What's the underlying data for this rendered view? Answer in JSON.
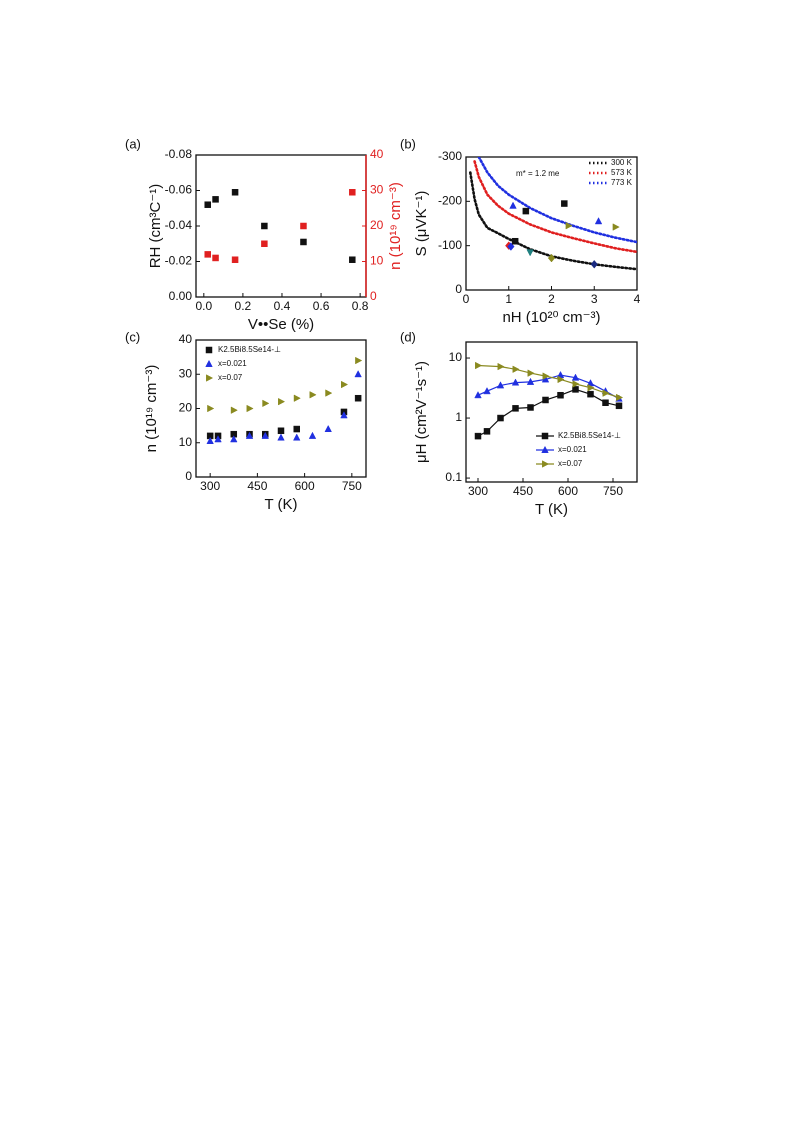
{
  "chart_data": [
    {
      "type": "scatter",
      "panel_label": "(a)",
      "xlabel": "V••Se (%)",
      "ylabel": "RH (cm³C⁻¹)",
      "y2label": "n (10¹⁹ cm⁻³)",
      "y2color": "#e02020",
      "xlim": [
        -0.04,
        0.83
      ],
      "xticks": [
        {
          "value": 0,
          "label": "0.0"
        },
        0.2,
        0.4,
        0.6,
        0.8
      ],
      "ylim": [
        0,
        -0.08
      ],
      "yticks": [
        -0.08,
        -0.06,
        -0.04,
        -0.02,
        {
          "value": 0,
          "label": "0.00"
        }
      ],
      "y2lim": [
        0,
        40
      ],
      "y2ticks": [
        0,
        10,
        20,
        30,
        40
      ],
      "series": [
        {
          "color": "#111111",
          "marker": "square",
          "x": [
            0.02,
            0.06,
            0.16,
            0.31,
            0.51,
            0.76
          ],
          "values": [
            -0.052,
            -0.055,
            -0.059,
            -0.04,
            -0.031,
            -0.021
          ]
        },
        {
          "color": "#e02020",
          "marker": "square",
          "axis": "y2",
          "x": [
            0.02,
            0.06,
            0.16,
            0.31,
            0.51,
            0.76
          ],
          "values": [
            12,
            11,
            10.5,
            15,
            20,
            29.5
          ]
        }
      ]
    },
    {
      "type": "line",
      "panel_label": "(b)",
      "xlabel": "nH (10²⁰ cm⁻³)",
      "ylabel": "S (μVK⁻¹)",
      "annotation": "m* = 1.2 me",
      "xlim": [
        0,
        4
      ],
      "xticks": [
        0,
        1,
        2,
        3,
        4
      ],
      "ylim": [
        0,
        -300
      ],
      "yticks": [
        -300,
        -200,
        -100,
        0
      ],
      "legend": "upper right",
      "linestyle": "dotted",
      "series": [
        {
          "name": "300 K",
          "color": "#111111",
          "x": [
            0.1,
            0.2,
            0.3,
            0.5,
            0.75,
            1,
            1.5,
            2,
            2.5,
            3,
            3.5,
            4
          ],
          "values": [
            -265,
            -205,
            -170,
            -140,
            -128,
            -115,
            -92,
            -76,
            -66,
            -58,
            -52,
            -47
          ]
        },
        {
          "name": "573 K",
          "color": "#e02020",
          "x": [
            0.1,
            0.2,
            0.3,
            0.5,
            0.75,
            1,
            1.5,
            2,
            2.5,
            3,
            3.5,
            4
          ],
          "values": [
            null,
            -290,
            -255,
            -215,
            -190,
            -172,
            -148,
            -130,
            -117,
            -105,
            -94,
            -86
          ]
        },
        {
          "name": "773 K",
          "color": "#2030e0",
          "x": [
            0.1,
            0.2,
            0.3,
            0.5,
            0.75,
            1,
            1.5,
            2,
            2.5,
            3,
            3.5,
            4
          ],
          "values": [
            null,
            null,
            -300,
            -265,
            -235,
            -215,
            -185,
            -162,
            -145,
            -130,
            -118,
            -108
          ]
        }
      ],
      "points": {
        "x": [
          1.0,
          1.05,
          1.15,
          1.5,
          2.0,
          3.0,
          1.4,
          2.3,
          1.1,
          3.1,
          2.4,
          3.5
        ],
        "values": [
          -100,
          -98,
          -110,
          -85,
          -72,
          -58,
          -178,
          -195,
          -190,
          -155,
          -145,
          -142
        ],
        "colors": [
          "#e02020",
          "#2030e0",
          "#111111",
          "#208080",
          "#8a8a20",
          "#1a2a80",
          "#111111",
          "#111111",
          "#2030e0",
          "#2030e0",
          "#8a8a20",
          "#8a8a20"
        ],
        "markers": [
          "diamond",
          "diamond",
          "square",
          "triangle-down",
          "diamond",
          "diamond",
          "square",
          "square",
          "triangle",
          "triangle",
          "triangle-right",
          "triangle-right"
        ]
      }
    },
    {
      "type": "scatter",
      "panel_label": "(c)",
      "xlabel": "T (K)",
      "ylabel": "n (10¹⁹ cm⁻³)",
      "xlim": [
        255,
        795
      ],
      "xticks": [
        300,
        450,
        600,
        750
      ],
      "ylim": [
        0,
        40
      ],
      "yticks": [
        0,
        10,
        20,
        30,
        40
      ],
      "legend": "upper left",
      "series": [
        {
          "name": "K2.5Bi8.5Se14-⊥",
          "color": "#111111",
          "marker": "square",
          "x": [
            300,
            325,
            375,
            425,
            475,
            525,
            575,
            725,
            770
          ],
          "values": [
            12,
            12,
            12.5,
            12.5,
            12.5,
            13.5,
            14,
            19,
            23
          ]
        },
        {
          "name": "x=0.021",
          "color": "#2030e0",
          "marker": "triangle",
          "x": [
            300,
            325,
            375,
            425,
            475,
            525,
            575,
            625,
            675,
            725,
            770
          ],
          "values": [
            10.5,
            11,
            11,
            12,
            12,
            11.5,
            11.5,
            12,
            14,
            18,
            30
          ]
        },
        {
          "name": "x=0.07",
          "color": "#8a8a20",
          "marker": "triangle-right",
          "x": [
            300,
            375,
            425,
            475,
            525,
            575,
            625,
            675,
            725,
            770
          ],
          "values": [
            20,
            19.5,
            20,
            21.5,
            22,
            23,
            24,
            24.5,
            27,
            34
          ]
        }
      ]
    },
    {
      "type": "line",
      "panel_label": "(d)",
      "xlabel": "T (K)",
      "ylabel": "μH (cm²V⁻¹s⁻¹)",
      "xlim": [
        260,
        830
      ],
      "xticks": [
        300,
        450,
        600,
        750
      ],
      "ylim": [
        0.086,
        18.5
      ],
      "yticks": [
        0.1,
        1,
        10
      ],
      "log_y": true,
      "legend": "lower right",
      "linestyle": "solid",
      "series": [
        {
          "name": "K2.5Bi8.5Se14-⊥",
          "color": "#111111",
          "marker": "square",
          "x": [
            300,
            330,
            375,
            425,
            475,
            525,
            575,
            625,
            675,
            725,
            770
          ],
          "values": [
            0.5,
            0.6,
            1.0,
            1.45,
            1.5,
            2.0,
            2.4,
            3.0,
            2.5,
            1.8,
            1.6
          ]
        },
        {
          "name": "x=0.021",
          "color": "#2030e0",
          "marker": "triangle",
          "x": [
            300,
            330,
            375,
            425,
            475,
            525,
            575,
            625,
            675,
            725,
            770
          ],
          "values": [
            2.4,
            2.8,
            3.5,
            3.9,
            4.0,
            4.4,
            5.2,
            4.7,
            3.8,
            2.8,
            2.1
          ]
        },
        {
          "name": "x=0.07",
          "color": "#8a8a20",
          "marker": "triangle-right",
          "x": [
            300,
            375,
            425,
            475,
            525,
            575,
            625,
            675,
            725,
            770
          ],
          "values": [
            7.5,
            7.2,
            6.5,
            5.6,
            5.0,
            4.4,
            3.7,
            3.2,
            2.6,
            2.2
          ]
        }
      ]
    }
  ]
}
